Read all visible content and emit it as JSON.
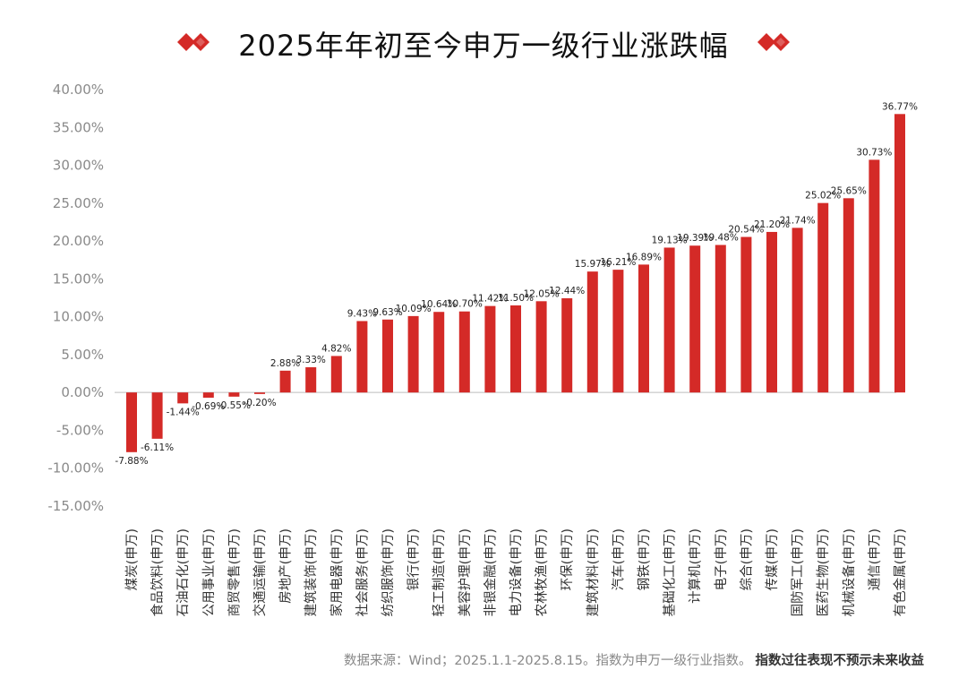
{
  "chart_data": {
    "type": "bar",
    "title": "2025年年初至今申万一级行业涨跌幅",
    "categories": [
      "煤炭(申万)",
      "食品饮料(申万)",
      "石油石化(申万)",
      "公用事业(申万)",
      "商贸零售(申万)",
      "交通运输(申万)",
      "房地产(申万)",
      "建筑装饰(申万)",
      "家用电器(申万)",
      "社会服务(申万)",
      "纺织服饰(申万)",
      "银行(申万)",
      "轻工制造(申万)",
      "美容护理(申万)",
      "非银金融(申万)",
      "电力设备(申万)",
      "农林牧渔(申万)",
      "环保(申万)",
      "建筑材料(申万)",
      "汽车(申万)",
      "钢铁(申万)",
      "基础化工(申万)",
      "计算机(申万)",
      "电子(申万)",
      "综合(申万)",
      "传媒(申万)",
      "国防军工(申万)",
      "医药生物(申万)",
      "机械设备(申万)",
      "通信(申万)",
      "有色金属(申万)"
    ],
    "values": [
      -7.88,
      -6.11,
      -1.44,
      -0.69,
      -0.55,
      -0.2,
      2.88,
      3.33,
      4.82,
      9.43,
      9.63,
      10.09,
      10.64,
      10.7,
      11.42,
      11.5,
      12.05,
      12.44,
      15.97,
      16.21,
      16.89,
      19.13,
      19.39,
      19.48,
      20.54,
      21.2,
      21.74,
      25.02,
      25.65,
      30.73,
      36.77
    ],
    "data_labels": [
      "-7.88%",
      "-6.11%",
      "-1.44%",
      "-0.69%",
      "-0.55%",
      "-0.20%",
      "2.88%",
      "3.33%",
      "4.82%",
      "9.43%",
      "9.63%",
      "10.09%",
      "10.64%",
      "10.70%",
      "11.42%",
      "11.50%",
      "12.05%",
      "12.44%",
      "15.97%",
      "16.21%",
      "16.89%",
      "19.13%",
      "19.39%",
      "19.48%",
      "20.54%",
      "21.20%",
      "21.74%",
      "25.02%",
      "25.65%",
      "30.73%",
      "36.77%"
    ],
    "yticks": [
      "40.00%",
      "35.00%",
      "30.00%",
      "25.00%",
      "20.00%",
      "15.00%",
      "10.00%",
      "5.00%",
      "0.00%",
      "-5.00%",
      "-10.00%",
      "-15.00%"
    ],
    "ylim": [
      -15,
      40
    ],
    "bar_color": "#d42a27",
    "grid": false
  },
  "source_note": "数据来源：Wind；2025.1.1-2025.8.15。指数为申万一级行业指数。",
  "disclaimer": "指数过往表现不预示未来收益",
  "accent_color": "#d42a27"
}
